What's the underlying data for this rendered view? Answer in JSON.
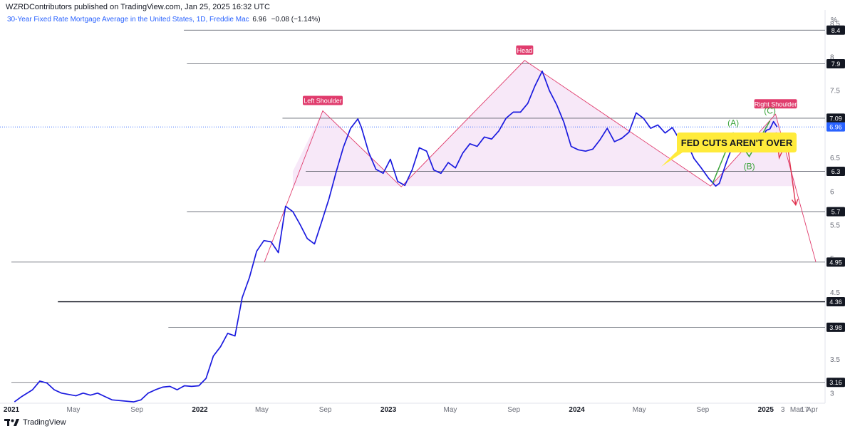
{
  "header": {
    "published": "WZRDContributors published on TradingView.com, Jan 25, 2025 16:32 UTC"
  },
  "symbol": {
    "title": "30-Year Fixed Rate Mortgage Average in the United States, 1D, Freddie Mac",
    "price": "6.96",
    "change": "−0.08 (−1.14%)"
  },
  "footer": {
    "brand": "TradingView"
  },
  "colors": {
    "series": "#1a1adf",
    "pattern": "#e03c6d",
    "pattern_fill": "#f7e8f8",
    "wave": "#3aa33a",
    "arrow": "#e0334f",
    "callout": "#ffeb3b",
    "current_price": "#2962ff"
  },
  "chart_data": {
    "type": "line",
    "title": "30-Year Fixed Rate Mortgage Average in the United States, 1D, Freddie Mac",
    "y_unit": "%",
    "ylim": [
      2.85,
      8.7
    ],
    "y_ticks": [
      "3",
      "3.5",
      "4",
      "4.5",
      "5",
      "5.5",
      "6",
      "6.5",
      "7",
      "7.5",
      "8",
      "8.5"
    ],
    "x_ticks": [
      {
        "label": "2021",
        "x": "2021-01-01",
        "bold": true
      },
      {
        "label": "May",
        "x": "2021-05-01"
      },
      {
        "label": "Sep",
        "x": "2021-09-01"
      },
      {
        "label": "2022",
        "x": "2022-01-01",
        "bold": true
      },
      {
        "label": "May",
        "x": "2022-05-01"
      },
      {
        "label": "Sep",
        "x": "2022-09-01"
      },
      {
        "label": "2023",
        "x": "2023-01-01",
        "bold": true
      },
      {
        "label": "May",
        "x": "2023-05-01"
      },
      {
        "label": "Sep",
        "x": "2023-09-01"
      },
      {
        "label": "2024",
        "x": "2024-01-01",
        "bold": true
      },
      {
        "label": "May",
        "x": "2024-05-01"
      },
      {
        "label": "Sep",
        "x": "2024-09-01"
      },
      {
        "label": "2025",
        "x": "2025-01-01",
        "bold": true
      },
      {
        "label": "3",
        "x": "2025-02-03"
      },
      {
        "label": "Mar",
        "x": "2025-03-01"
      },
      {
        "label": "17",
        "x": "2025-03-17"
      },
      {
        "label": "Apr",
        "x": "2025-04-01"
      }
    ],
    "series": [
      {
        "values": [
          [
            "2021-01-07",
            2.87
          ],
          [
            "2021-01-21",
            2.95
          ],
          [
            "2021-02-11",
            3.05
          ],
          [
            "2021-02-25",
            3.18
          ],
          [
            "2021-03-11",
            3.15
          ],
          [
            "2021-03-25",
            3.05
          ],
          [
            "2021-04-08",
            3.0
          ],
          [
            "2021-04-22",
            2.98
          ],
          [
            "2021-05-06",
            2.96
          ],
          [
            "2021-05-20",
            3.0
          ],
          [
            "2021-06-03",
            2.97
          ],
          [
            "2021-06-17",
            3.0
          ],
          [
            "2021-07-01",
            2.95
          ],
          [
            "2021-07-15",
            2.9
          ],
          [
            "2021-08-26",
            2.87
          ],
          [
            "2021-09-09",
            2.9
          ],
          [
            "2021-09-23",
            3.0
          ],
          [
            "2021-10-07",
            3.05
          ],
          [
            "2021-10-21",
            3.09
          ],
          [
            "2021-11-04",
            3.1
          ],
          [
            "2021-11-18",
            3.05
          ],
          [
            "2021-12-02",
            3.11
          ],
          [
            "2021-12-16",
            3.1
          ],
          [
            "2021-12-30",
            3.11
          ],
          [
            "2022-01-13",
            3.22
          ],
          [
            "2022-01-27",
            3.55
          ],
          [
            "2022-02-10",
            3.69
          ],
          [
            "2022-02-24",
            3.89
          ],
          [
            "2022-03-10",
            3.85
          ],
          [
            "2022-03-24",
            4.42
          ],
          [
            "2022-04-07",
            4.72
          ],
          [
            "2022-04-21",
            5.11
          ],
          [
            "2022-05-05",
            5.27
          ],
          [
            "2022-05-19",
            5.25
          ],
          [
            "2022-06-02",
            5.09
          ],
          [
            "2022-06-16",
            5.78
          ],
          [
            "2022-06-30",
            5.7
          ],
          [
            "2022-07-14",
            5.51
          ],
          [
            "2022-07-28",
            5.3
          ],
          [
            "2022-08-11",
            5.22
          ],
          [
            "2022-08-25",
            5.55
          ],
          [
            "2022-09-08",
            5.89
          ],
          [
            "2022-09-22",
            6.29
          ],
          [
            "2022-10-06",
            6.66
          ],
          [
            "2022-10-20",
            6.94
          ],
          [
            "2022-11-03",
            7.08
          ],
          [
            "2022-11-10",
            6.95
          ],
          [
            "2022-11-24",
            6.58
          ],
          [
            "2022-12-08",
            6.33
          ],
          [
            "2022-12-22",
            6.27
          ],
          [
            "2023-01-05",
            6.48
          ],
          [
            "2023-01-19",
            6.15
          ],
          [
            "2023-02-02",
            6.09
          ],
          [
            "2023-02-16",
            6.32
          ],
          [
            "2023-03-02",
            6.65
          ],
          [
            "2023-03-16",
            6.6
          ],
          [
            "2023-03-30",
            6.32
          ],
          [
            "2023-04-13",
            6.27
          ],
          [
            "2023-04-27",
            6.43
          ],
          [
            "2023-05-11",
            6.35
          ],
          [
            "2023-05-25",
            6.57
          ],
          [
            "2023-06-08",
            6.71
          ],
          [
            "2023-06-22",
            6.67
          ],
          [
            "2023-07-06",
            6.81
          ],
          [
            "2023-07-20",
            6.78
          ],
          [
            "2023-08-03",
            6.9
          ],
          [
            "2023-08-17",
            7.09
          ],
          [
            "2023-08-31",
            7.18
          ],
          [
            "2023-09-14",
            7.18
          ],
          [
            "2023-09-28",
            7.31
          ],
          [
            "2023-10-12",
            7.57
          ],
          [
            "2023-10-26",
            7.79
          ],
          [
            "2023-11-09",
            7.5
          ],
          [
            "2023-11-23",
            7.29
          ],
          [
            "2023-12-07",
            7.03
          ],
          [
            "2023-12-21",
            6.67
          ],
          [
            "2024-01-04",
            6.62
          ],
          [
            "2024-01-18",
            6.6
          ],
          [
            "2024-02-01",
            6.63
          ],
          [
            "2024-02-15",
            6.77
          ],
          [
            "2024-02-29",
            6.94
          ],
          [
            "2024-03-14",
            6.74
          ],
          [
            "2024-03-28",
            6.79
          ],
          [
            "2024-04-11",
            6.88
          ],
          [
            "2024-04-25",
            7.17
          ],
          [
            "2024-05-09",
            7.09
          ],
          [
            "2024-05-23",
            6.94
          ],
          [
            "2024-06-06",
            6.99
          ],
          [
            "2024-06-20",
            6.87
          ],
          [
            "2024-07-04",
            6.95
          ],
          [
            "2024-07-18",
            6.77
          ],
          [
            "2024-08-01",
            6.73
          ],
          [
            "2024-08-15",
            6.49
          ],
          [
            "2024-08-29",
            6.35
          ],
          [
            "2024-09-12",
            6.2
          ],
          [
            "2024-09-26",
            6.08
          ],
          [
            "2024-10-03",
            6.12
          ],
          [
            "2024-10-17",
            6.44
          ],
          [
            "2024-10-31",
            6.72
          ],
          [
            "2024-11-14",
            6.78
          ],
          [
            "2024-11-28",
            6.81
          ],
          [
            "2024-12-05",
            6.69
          ],
          [
            "2024-12-19",
            6.72
          ],
          [
            "2025-01-02",
            6.91
          ],
          [
            "2025-01-09",
            6.93
          ],
          [
            "2025-01-16",
            7.04
          ],
          [
            "2025-01-23",
            6.96
          ]
        ]
      }
    ],
    "horizontal_levels": [
      {
        "value": 8.4,
        "label": "8.4",
        "from": "2021-12-01"
      },
      {
        "value": 7.9,
        "label": "7.9",
        "from": "2021-12-07"
      },
      {
        "value": 7.09,
        "label": "7.09",
        "from": "2022-06-10"
      },
      {
        "value": 6.3,
        "label": "6.3",
        "from": "2022-07-25"
      },
      {
        "value": 5.7,
        "label": "5.7",
        "from": "2021-12-07"
      },
      {
        "value": 4.95,
        "label": "4.95",
        "from": "2021-01-01"
      },
      {
        "value": 4.36,
        "label": "4.36",
        "from": "2021-04-01",
        "bold": true
      },
      {
        "value": 3.98,
        "label": "3.98",
        "from": "2021-11-01"
      },
      {
        "value": 3.16,
        "label": "3.16",
        "from": "2021-01-01"
      }
    ],
    "current_price": {
      "value": 6.96,
      "label": "6.96"
    },
    "pattern": {
      "name": "head-and-shoulders",
      "labels": {
        "left": "Left Shoulder",
        "head": "Head",
        "right": "Right Shoulder"
      },
      "points": [
        [
          "2022-05-06",
          4.95
        ],
        [
          "2022-08-27",
          7.2
        ],
        [
          "2023-01-26",
          6.07
        ],
        [
          "2023-09-22",
          7.95
        ],
        [
          "2024-09-16",
          6.08
        ],
        [
          "2025-01-20",
          7.15
        ],
        [
          "2025-04-08",
          4.95
        ]
      ],
      "neckline_low": 6.08
    },
    "waves": {
      "labels": [
        "(A)",
        "(B)",
        "(C)"
      ],
      "points": [
        [
          "2024-09-20",
          6.12
        ],
        [
          "2024-10-30",
          6.87
        ],
        [
          "2024-11-30",
          6.52
        ],
        [
          "2025-01-09",
          7.05
        ]
      ]
    },
    "projection": {
      "points": [
        [
          "2025-01-21",
          6.88
        ],
        [
          "2025-01-27",
          6.5
        ],
        [
          "2025-02-11",
          6.75
        ],
        [
          "2025-02-28",
          5.8
        ]
      ]
    },
    "callout": "FED CUTS AREN'T OVER"
  }
}
